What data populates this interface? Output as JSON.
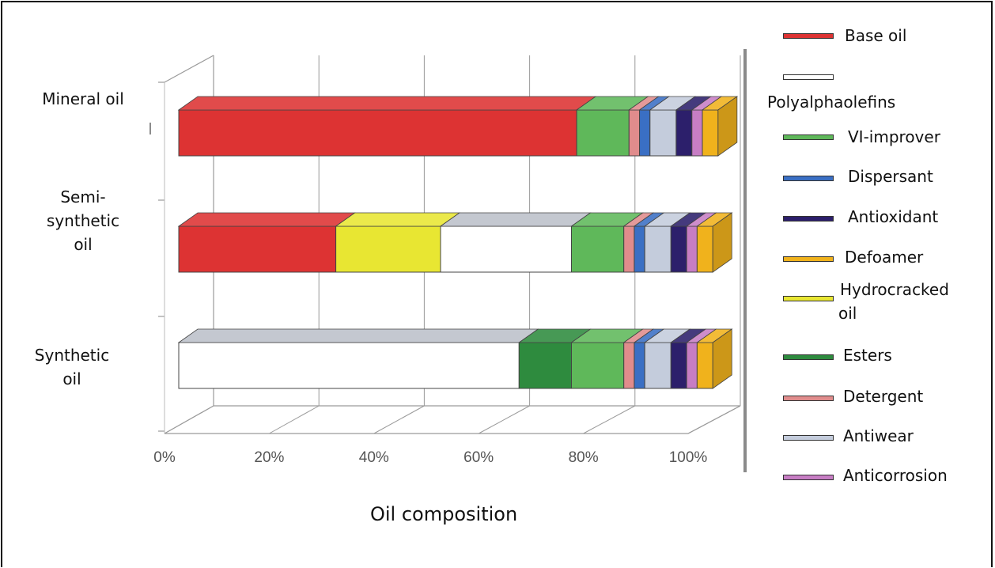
{
  "chart_data": {
    "type": "bar",
    "orientation": "horizontal",
    "stacked": true,
    "style": "3d",
    "categories": [
      "Mineral oil",
      "Semi-synthetic oil",
      "Synthetic oil"
    ],
    "category_lines": [
      [
        "Mineral oil"
      ],
      [
        "Semi-",
        "synthetic",
        "oil"
      ],
      [
        "Synthetic",
        "oil"
      ]
    ],
    "xlabel": "Oil composition",
    "xlim": [
      0,
      100
    ],
    "xticks": [
      "0%",
      "20%",
      "40%",
      "60%",
      "80%",
      "100%"
    ],
    "grid": true,
    "legend_position": "right",
    "series": [
      {
        "name": "Base oil",
        "color": "#dd3333",
        "values": [
          76,
          30,
          0
        ]
      },
      {
        "name": "Hydrocracked oil",
        "color": "#e8e632",
        "values": [
          0,
          20,
          0
        ]
      },
      {
        "name": "Polyalphaolefins",
        "color": "#ffffff",
        "values": [
          0,
          25,
          65
        ]
      },
      {
        "name": "Esters",
        "color": "#2e8b3e",
        "values": [
          0,
          0,
          10
        ]
      },
      {
        "name": "VI-improver",
        "color": "#5fb85a",
        "values": [
          10,
          10,
          10
        ]
      },
      {
        "name": "Detergent",
        "color": "#e08c8c",
        "values": [
          2,
          2,
          2
        ]
      },
      {
        "name": "Dispersant",
        "color": "#3a6fc4",
        "values": [
          2,
          2,
          2
        ]
      },
      {
        "name": "Antiwear",
        "color": "#c4ccdc",
        "values": [
          5,
          5,
          5
        ]
      },
      {
        "name": "Antioxidant",
        "color": "#2c1f6b",
        "values": [
          3,
          3,
          3
        ]
      },
      {
        "name": "Anticorrosion",
        "color": "#c77dc4",
        "values": [
          2,
          2,
          2
        ]
      },
      {
        "name": "Defoamer",
        "color": "#f0b21c",
        "values": [
          3,
          3,
          3
        ]
      }
    ]
  },
  "legend": {
    "items": [
      {
        "label": "Base oil",
        "color": "#dd3333"
      },
      {
        "label": "Polyalphaolefins",
        "color": "#ffffff"
      },
      {
        "label": "VI-improver",
        "color": "#5fb85a"
      },
      {
        "label": "Dispersant",
        "color": "#3a6fc4"
      },
      {
        "label": "Antioxidant",
        "color": "#2c1f6b"
      },
      {
        "label": "Defoamer",
        "color": "#f0b21c"
      },
      {
        "label": "Hydrocracked",
        "label2": "oil",
        "color": "#e8e632"
      },
      {
        "label": "Esters",
        "color": "#2e8b3e"
      },
      {
        "label": "Detergent",
        "color": "#e08c8c"
      },
      {
        "label": "Antiwear",
        "color": "#c4ccdc"
      },
      {
        "label": "Anticorrosion",
        "color": "#c77dc4"
      }
    ]
  }
}
